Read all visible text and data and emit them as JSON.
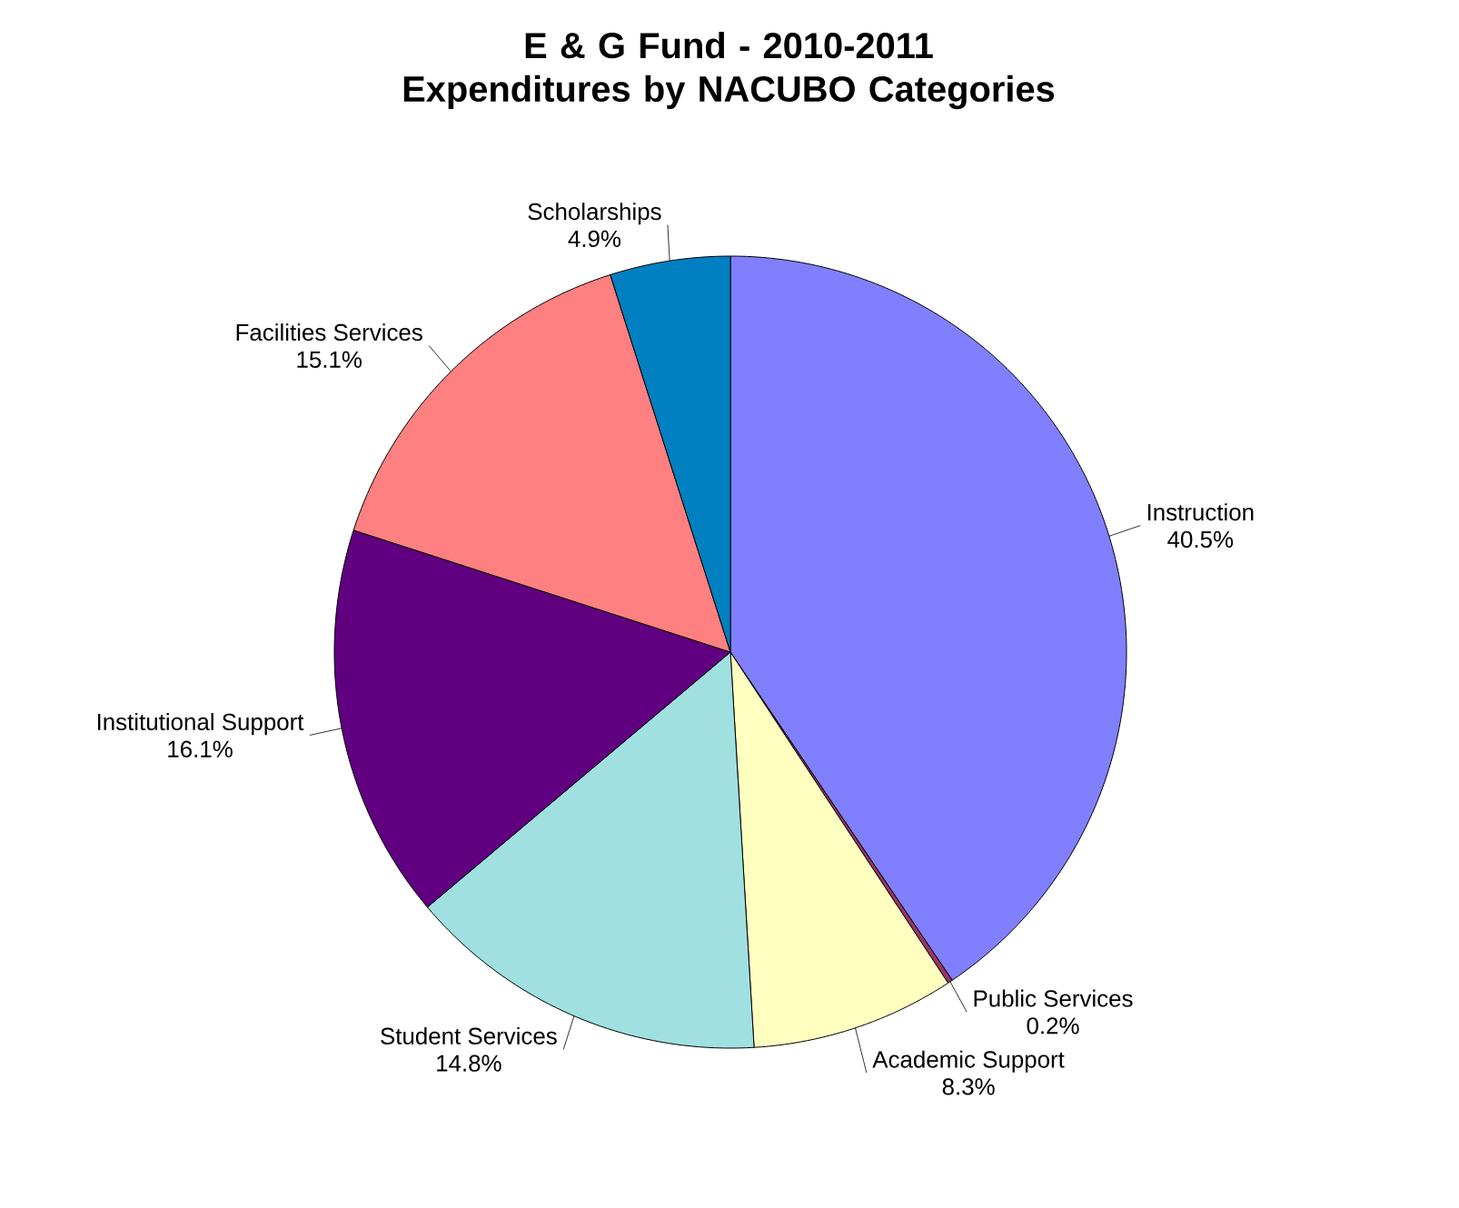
{
  "chart_data": {
    "type": "pie",
    "title": "E & G Fund - 2010-2011\nExpenditures by NACUBO Categories",
    "categories": [
      "Instruction",
      "Public Services",
      "Academic Support",
      "Student Services",
      "Institutional Support",
      "Facilities Services",
      "Scholarships"
    ],
    "values": [
      40.5,
      0.2,
      8.3,
      14.8,
      16.1,
      15.1,
      4.9
    ],
    "value_labels": [
      "40.5%",
      "0.2%",
      "8.3%",
      "14.8%",
      "16.1%",
      "15.1%",
      "4.9%"
    ],
    "colors": [
      "#8080ff",
      "#993366",
      "#ffffc0",
      "#a0e0e0",
      "#600080",
      "#ff8080",
      "#0080c0"
    ],
    "legend": false
  }
}
